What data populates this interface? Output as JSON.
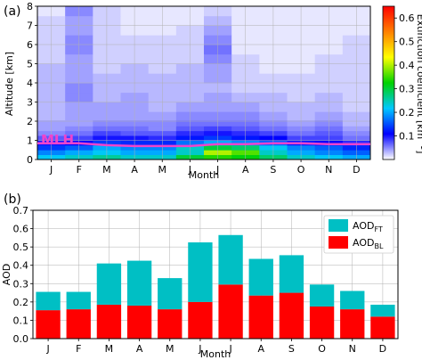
{
  "chart_data": [
    {
      "type": "heatmap",
      "panel_label": "(a)",
      "xlabel": "Month",
      "ylabel": "Altitude [km]",
      "categories": [
        "J",
        "F",
        "M",
        "A",
        "M",
        "J",
        "J",
        "A",
        "S",
        "O",
        "N",
        "D"
      ],
      "altitudes_km": [
        0.125,
        0.375,
        0.625,
        0.875,
        1.125,
        1.375,
        1.625,
        1.875,
        2.25,
        2.75,
        3.25,
        3.75,
        4.25,
        4.75,
        5.25,
        5.75,
        6.25,
        6.75,
        7.25,
        7.75
      ],
      "extinction_km_inv": [
        [
          0.22,
          0.24,
          0.26,
          0.24,
          0.24,
          0.3,
          0.34,
          0.32,
          0.28,
          0.24,
          0.22,
          0.2
        ],
        [
          0.18,
          0.2,
          0.22,
          0.2,
          0.2,
          0.24,
          0.4,
          0.36,
          0.24,
          0.2,
          0.18,
          0.16
        ],
        [
          0.14,
          0.16,
          0.2,
          0.18,
          0.18,
          0.24,
          0.3,
          0.28,
          0.22,
          0.18,
          0.16,
          0.13
        ],
        [
          0.1,
          0.11,
          0.14,
          0.13,
          0.13,
          0.17,
          0.2,
          0.18,
          0.16,
          0.12,
          0.11,
          0.09
        ],
        [
          0.07,
          0.08,
          0.1,
          0.1,
          0.09,
          0.12,
          0.14,
          0.12,
          0.11,
          0.08,
          0.08,
          0.06
        ],
        [
          0.05,
          0.06,
          0.08,
          0.07,
          0.07,
          0.09,
          0.1,
          0.09,
          0.08,
          0.06,
          0.07,
          0.05
        ],
        [
          0.04,
          0.05,
          0.06,
          0.06,
          0.05,
          0.07,
          0.08,
          0.07,
          0.06,
          0.05,
          0.06,
          0.04
        ],
        [
          0.04,
          0.04,
          0.05,
          0.05,
          0.05,
          0.06,
          0.06,
          0.06,
          0.05,
          0.04,
          0.05,
          0.03
        ],
        [
          0.03,
          0.04,
          0.04,
          0.04,
          0.04,
          0.05,
          0.05,
          0.05,
          0.04,
          0.03,
          0.04,
          0.03
        ],
        [
          0.03,
          0.04,
          0.04,
          0.04,
          0.03,
          0.04,
          0.04,
          0.04,
          0.03,
          0.03,
          0.03,
          0.02
        ],
        [
          0.03,
          0.05,
          0.03,
          0.04,
          0.03,
          0.03,
          0.04,
          0.03,
          0.03,
          0.02,
          0.03,
          0.02
        ],
        [
          0.03,
          0.05,
          0.03,
          0.03,
          0.03,
          0.03,
          0.03,
          0.02,
          0.02,
          0.02,
          0.02,
          0.02
        ],
        [
          0.03,
          0.04,
          0.03,
          0.03,
          0.03,
          0.03,
          0.04,
          0.02,
          0.02,
          0.02,
          0.02,
          0.02
        ],
        [
          0.03,
          0.04,
          0.02,
          0.03,
          0.02,
          0.03,
          0.04,
          0.02,
          0.01,
          0.01,
          0.02,
          0.02
        ],
        [
          0.02,
          0.04,
          0.02,
          0.02,
          0.02,
          0.02,
          0.05,
          0.02,
          0.01,
          0.01,
          0.02,
          0.02
        ],
        [
          0.02,
          0.05,
          0.02,
          0.02,
          0.02,
          0.02,
          0.06,
          0.01,
          0.01,
          0.01,
          0.01,
          0.02
        ],
        [
          0.02,
          0.05,
          0.02,
          0.02,
          0.02,
          0.02,
          0.05,
          0.01,
          0.01,
          0.01,
          0.01,
          0.02
        ],
        [
          0.02,
          0.04,
          0.02,
          0.01,
          0.01,
          0.02,
          0.04,
          0.01,
          0.01,
          0.01,
          0.01,
          0.01
        ],
        [
          0.02,
          0.04,
          0.02,
          0.01,
          0.01,
          0.01,
          0.03,
          0.01,
          0.01,
          0.01,
          0.01,
          0.01
        ],
        [
          0.01,
          0.05,
          0.02,
          0.01,
          0.01,
          0.01,
          0.02,
          0.01,
          0.01,
          0.01,
          0.01,
          0.01
        ]
      ],
      "mlh_label": "MLH",
      "mlh_km": [
        0.85,
        0.85,
        0.75,
        0.7,
        0.7,
        0.7,
        0.8,
        0.8,
        0.85,
        0.85,
        0.8,
        0.8
      ],
      "mlh_color": "#ee44cc",
      "ylim": [
        0,
        8
      ],
      "yticks": [
        0,
        1,
        2,
        3,
        4,
        5,
        6,
        7,
        8
      ],
      "colorbar": {
        "label": "Extinction coefficient [km",
        "label_sup": "−1",
        "label_end": "]",
        "vmin": 0.0,
        "vmax": 0.65,
        "ticks": [
          "0.1",
          "0.2",
          "0.3",
          "0.4",
          "0.5",
          "0.6"
        ],
        "tick_values": [
          0.1,
          0.2,
          0.3,
          0.4,
          0.5,
          0.6
        ],
        "colors": [
          "#ffffff",
          "#0000ff",
          "#00c8ff",
          "#00d200",
          "#ffff00",
          "#ff8000",
          "#ff0000"
        ]
      }
    },
    {
      "type": "bar",
      "stacked": true,
      "panel_label": "(b)",
      "xlabel": "Month",
      "ylabel": "AOD",
      "categories": [
        "J",
        "F",
        "M",
        "A",
        "M",
        "J",
        "J",
        "A",
        "S",
        "O",
        "N",
        "D"
      ],
      "ylim": [
        0,
        0.7
      ],
      "yticks": [
        "0.0",
        "0.1",
        "0.2",
        "0.3",
        "0.4",
        "0.5",
        "0.6",
        "0.7"
      ],
      "ytick_values": [
        0,
        0.1,
        0.2,
        0.3,
        0.4,
        0.5,
        0.6,
        0.7
      ],
      "grid": true,
      "legend_position": "top-right",
      "series": [
        {
          "name": "AOD",
          "sub": "BL",
          "color": "#ff0000",
          "values": [
            0.155,
            0.16,
            0.185,
            0.18,
            0.16,
            0.2,
            0.295,
            0.235,
            0.25,
            0.175,
            0.16,
            0.12
          ]
        },
        {
          "name": "AOD",
          "sub": "FT",
          "color": "#00bfc4",
          "values": [
            0.1,
            0.095,
            0.225,
            0.245,
            0.17,
            0.325,
            0.27,
            0.2,
            0.205,
            0.12,
            0.1,
            0.065
          ]
        }
      ]
    }
  ]
}
